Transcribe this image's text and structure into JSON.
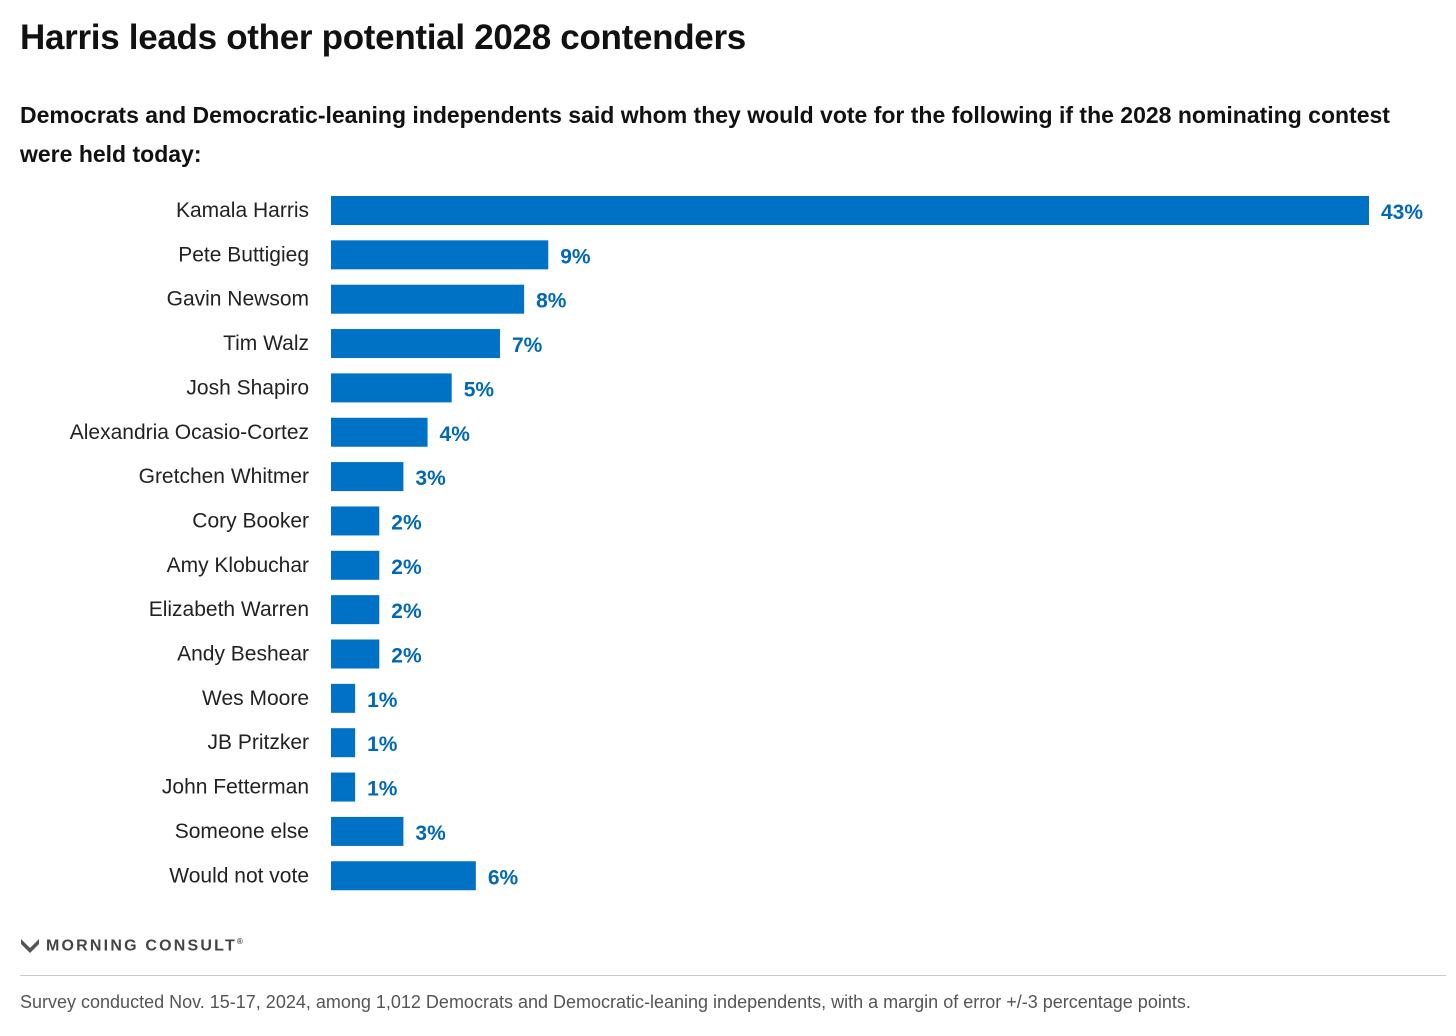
{
  "header": {
    "title": "Harris leads other potential 2028 contenders",
    "subtitle": "Democrats and Democratic-leaning independents said whom they would vote for the following if the 2028 nominating contest were held today:"
  },
  "chart_data": {
    "type": "bar",
    "orientation": "horizontal",
    "categories": [
      "Kamala Harris",
      "Pete Buttigieg",
      "Gavin Newsom",
      "Tim Walz",
      "Josh Shapiro",
      "Alexandria Ocasio-Cortez",
      "Gretchen Whitmer",
      "Cory Booker",
      "Amy Klobuchar",
      "Elizabeth Warren",
      "Andy Beshear",
      "Wes Moore",
      "JB Pritzker",
      "John Fetterman",
      "Someone else",
      "Would not vote"
    ],
    "values": [
      43,
      9,
      8,
      7,
      5,
      4,
      3,
      2,
      2,
      2,
      2,
      1,
      1,
      1,
      3,
      6
    ],
    "value_labels": [
      "43%",
      "9%",
      "8%",
      "7%",
      "5%",
      "4%",
      "3%",
      "2%",
      "2%",
      "2%",
      "2%",
      "1%",
      "1%",
      "1%",
      "3%",
      "6%"
    ],
    "unit": "%",
    "xlim": [
      0,
      43
    ],
    "grid": false,
    "legend": "none",
    "bar_color": "#0072c6",
    "label_color": "#0068b4"
  },
  "branding": {
    "logo_text": "MORNING CONSULT",
    "logo_mark": "®"
  },
  "footer": {
    "note": "Survey conducted Nov. 15-17, 2024, among 1,012 Democrats and Democratic-leaning independents, with a margin of error +/-3 percentage points."
  }
}
